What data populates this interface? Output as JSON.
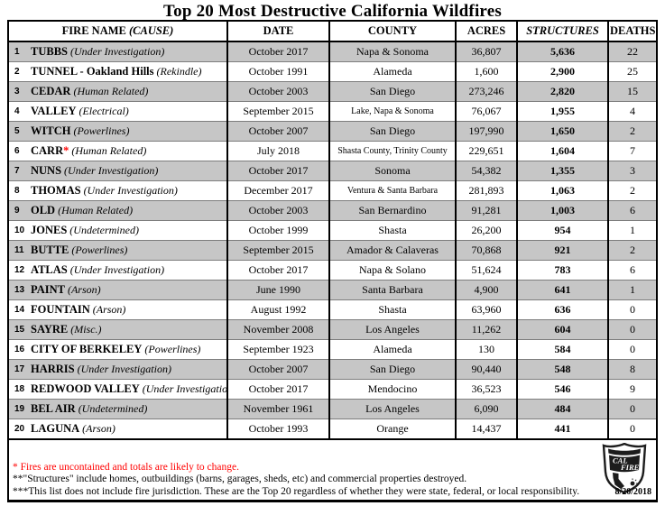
{
  "title": "Top 20 Most Destructive California Wildfires",
  "table": {
    "headers": {
      "fire_name": "FIRE NAME",
      "fire_name_cause": "(CAUSE)",
      "date": "DATE",
      "county": "COUNTY",
      "acres": "ACRES",
      "structures": "STRUCTURES",
      "deaths": "DEATHS"
    },
    "rows": [
      {
        "rank": "1",
        "name": "TUBBS",
        "cause": "(Under Investigation)",
        "date": "October 2017",
        "county": "Napa & Sonoma",
        "acres": "36,807",
        "structures": "5,636",
        "deaths": "22"
      },
      {
        "rank": "2",
        "name": "TUNNEL - Oakland Hills",
        "cause": "(Rekindle)",
        "date": "October 1991",
        "county": "Alameda",
        "acres": "1,600",
        "structures": "2,900",
        "deaths": "25"
      },
      {
        "rank": "3",
        "name": "CEDAR",
        "cause": "(Human Related)",
        "date": "October 2003",
        "county": "San Diego",
        "acres": "273,246",
        "structures": "2,820",
        "deaths": "15"
      },
      {
        "rank": "4",
        "name": "VALLEY",
        "cause": "(Electrical)",
        "date": "September 2015",
        "county": "Lake, Napa & Sonoma",
        "acres": "76,067",
        "structures": "1,955",
        "deaths": "4"
      },
      {
        "rank": "5",
        "name": "WITCH",
        "cause": "(Powerlines)",
        "date": "October 2007",
        "county": "San Diego",
        "acres": "197,990",
        "structures": "1,650",
        "deaths": "2"
      },
      {
        "rank": "6",
        "name": "CARR",
        "asterisk": "*",
        "cause": "(Human Related)",
        "date": "July 2018",
        "county": "Shasta County, Trinity County",
        "acres": "229,651",
        "structures": "1,604",
        "deaths": "7"
      },
      {
        "rank": "7",
        "name": "NUNS",
        "cause": "(Under Investigation)",
        "date": "October 2017",
        "county": "Sonoma",
        "acres": "54,382",
        "structures": "1,355",
        "deaths": "3"
      },
      {
        "rank": "8",
        "name": "THOMAS",
        "cause": "(Under Investigation)",
        "date": "December 2017",
        "county": "Ventura & Santa Barbara",
        "acres": "281,893",
        "structures": "1,063",
        "deaths": "2"
      },
      {
        "rank": "9",
        "name": "OLD",
        "cause": "(Human Related)",
        "date": "October 2003",
        "county": "San Bernardino",
        "acres": "91,281",
        "structures": "1,003",
        "deaths": "6"
      },
      {
        "rank": "10",
        "name": "JONES",
        "cause": "(Undetermined)",
        "date": "October 1999",
        "county": "Shasta",
        "acres": "26,200",
        "structures": "954",
        "deaths": "1"
      },
      {
        "rank": "11",
        "name": "BUTTE",
        "cause": "(Powerlines)",
        "date": "September 2015",
        "county": "Amador & Calaveras",
        "acres": "70,868",
        "structures": "921",
        "deaths": "2"
      },
      {
        "rank": "12",
        "name": "ATLAS",
        "cause": "(Under Investigation)",
        "date": "October 2017",
        "county": "Napa & Solano",
        "acres": "51,624",
        "structures": "783",
        "deaths": "6"
      },
      {
        "rank": "13",
        "name": "PAINT",
        "cause": "(Arson)",
        "date": "June 1990",
        "county": "Santa Barbara",
        "acres": "4,900",
        "structures": "641",
        "deaths": "1"
      },
      {
        "rank": "14",
        "name": "FOUNTAIN",
        "cause": "(Arson)",
        "date": "August 1992",
        "county": "Shasta",
        "acres": "63,960",
        "structures": "636",
        "deaths": "0"
      },
      {
        "rank": "15",
        "name": "SAYRE",
        "cause": "(Misc.)",
        "date": "November 2008",
        "county": "Los Angeles",
        "acres": "11,262",
        "structures": "604",
        "deaths": "0"
      },
      {
        "rank": "16",
        "name": "CITY OF BERKELEY",
        "cause": "(Powerlines)",
        "date": "September 1923",
        "county": "Alameda",
        "acres": "130",
        "structures": "584",
        "deaths": "0"
      },
      {
        "rank": "17",
        "name": "HARRIS",
        "cause": "(Under Investigation)",
        "date": "October 2007",
        "county": "San Diego",
        "acres": "90,440",
        "structures": "548",
        "deaths": "8"
      },
      {
        "rank": "18",
        "name": "REDWOOD VALLEY",
        "cause": "(Under Investigation)",
        "date": "October 2017",
        "county": "Mendocino",
        "acres": "36,523",
        "structures": "546",
        "deaths": "9"
      },
      {
        "rank": "19",
        "name": "BEL AIR",
        "cause": "(Undetermined)",
        "date": "November 1961",
        "county": "Los Angeles",
        "acres": "6,090",
        "structures": "484",
        "deaths": "0"
      },
      {
        "rank": "20",
        "name": "LAGUNA",
        "cause": "(Arson)",
        "date": "October 1993",
        "county": "Orange",
        "acres": "14,437",
        "structures": "441",
        "deaths": "0"
      }
    ]
  },
  "footnotes": [
    "* Fires are uncontained and totals are likely to change.",
    "**\"Structures\" include homes, outbuildings (barns, garages, sheds, etc) and commercial properties destroyed.",
    "***This list does not include fire jurisdiction.  These are the Top 20 regardless of whether they were state, federal, or local responsibility."
  ],
  "logo": {
    "line1": "CAL",
    "line2": "FIRE"
  },
  "date_stamp": "8/20/2018",
  "colors": {
    "row_alt_gray": "#c6c6c6",
    "note_red": "#ff0000",
    "border_black": "#000000"
  }
}
